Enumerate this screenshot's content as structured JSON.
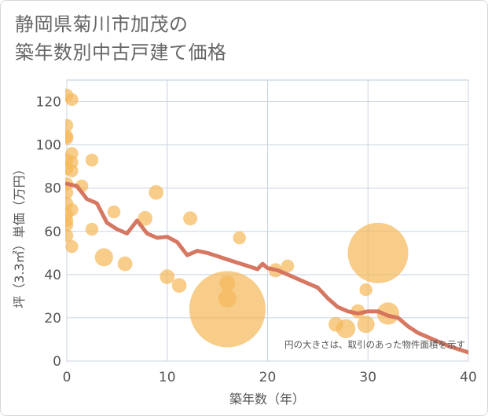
{
  "page": {
    "title_line1": "静岡県菊川市加茂の",
    "title_line2": "築年数別中古戸建て価格"
  },
  "chart_data": {
    "type": "scatter",
    "title": "静岡県菊川市加茂の築年数別中古戸建て価格",
    "xlabel": "築年数（年）",
    "ylabel": "坪（3.3㎡）単価（万円）",
    "xlim": [
      0,
      40
    ],
    "ylim": [
      0,
      130
    ],
    "x_ticks": [
      "0",
      "10",
      "20",
      "30",
      "40"
    ],
    "y_ticks": [
      "0",
      "20",
      "40",
      "60",
      "80",
      "100",
      "120"
    ],
    "grid": true,
    "annotation": "円の大きさは、取引のあった物件面積を示す",
    "colors": {
      "bubble": "#f5b85c",
      "trend": "#d4705a",
      "grid": "#c8d4e0",
      "frame": "#b8c8d8"
    },
    "series": [
      {
        "kind": "bubble",
        "points": [
          {
            "x": 0,
            "y": 123,
            "size": 1
          },
          {
            "x": 0,
            "y": 109,
            "size": 1
          },
          {
            "x": 0,
            "y": 104,
            "size": 1
          },
          {
            "x": 0,
            "y": 103,
            "size": 1
          },
          {
            "x": 0,
            "y": 93,
            "size": 1
          },
          {
            "x": 0,
            "y": 89,
            "size": 1
          },
          {
            "x": 0,
            "y": 82,
            "size": 1
          },
          {
            "x": 0,
            "y": 78,
            "size": 1
          },
          {
            "x": 0,
            "y": 73,
            "size": 1
          },
          {
            "x": 0,
            "y": 68,
            "size": 1
          },
          {
            "x": 0,
            "y": 65,
            "size": 1
          },
          {
            "x": 0,
            "y": 63,
            "size": 1
          },
          {
            "x": 0,
            "y": 58,
            "size": 1
          },
          {
            "x": 0.5,
            "y": 121,
            "size": 1
          },
          {
            "x": 0.5,
            "y": 96,
            "size": 1
          },
          {
            "x": 0.5,
            "y": 92,
            "size": 1
          },
          {
            "x": 0.5,
            "y": 88,
            "size": 1
          },
          {
            "x": 0.5,
            "y": 70,
            "size": 1
          },
          {
            "x": 0.5,
            "y": 53,
            "size": 1
          },
          {
            "x": 1.5,
            "y": 81,
            "size": 1
          },
          {
            "x": 2.5,
            "y": 93,
            "size": 1
          },
          {
            "x": 2.5,
            "y": 61,
            "size": 1
          },
          {
            "x": 3.7,
            "y": 48,
            "size": 2
          },
          {
            "x": 4.7,
            "y": 69,
            "size": 1
          },
          {
            "x": 5.8,
            "y": 45,
            "size": 1.3
          },
          {
            "x": 7.8,
            "y": 66,
            "size": 1.3
          },
          {
            "x": 8.9,
            "y": 78,
            "size": 1.3
          },
          {
            "x": 10,
            "y": 39,
            "size": 1.3
          },
          {
            "x": 11.2,
            "y": 35,
            "size": 1.3
          },
          {
            "x": 12.3,
            "y": 66,
            "size": 1.2
          },
          {
            "x": 16,
            "y": 24,
            "size": 35
          },
          {
            "x": 16,
            "y": 36,
            "size": 1.5
          },
          {
            "x": 16,
            "y": 29,
            "size": 2
          },
          {
            "x": 17.2,
            "y": 57,
            "size": 1
          },
          {
            "x": 20.8,
            "y": 42,
            "size": 1.2
          },
          {
            "x": 22,
            "y": 44,
            "size": 1
          },
          {
            "x": 26.8,
            "y": 17,
            "size": 1.3
          },
          {
            "x": 27.8,
            "y": 15,
            "size": 2.2
          },
          {
            "x": 29,
            "y": 23,
            "size": 1.2
          },
          {
            "x": 29.8,
            "y": 33,
            "size": 1
          },
          {
            "x": 29.8,
            "y": 17,
            "size": 1.8
          },
          {
            "x": 31,
            "y": 50,
            "size": 22
          },
          {
            "x": 32,
            "y": 22,
            "size": 3
          }
        ]
      },
      {
        "kind": "line",
        "points": [
          {
            "x": 0,
            "y": 82
          },
          {
            "x": 1,
            "y": 81
          },
          {
            "x": 2,
            "y": 75
          },
          {
            "x": 3,
            "y": 73
          },
          {
            "x": 4,
            "y": 64
          },
          {
            "x": 5,
            "y": 61
          },
          {
            "x": 6,
            "y": 59
          },
          {
            "x": 7,
            "y": 65
          },
          {
            "x": 8,
            "y": 59
          },
          {
            "x": 9,
            "y": 57
          },
          {
            "x": 10,
            "y": 57.5
          },
          {
            "x": 11,
            "y": 55
          },
          {
            "x": 12,
            "y": 49
          },
          {
            "x": 13,
            "y": 51
          },
          {
            "x": 14,
            "y": 50
          },
          {
            "x": 15,
            "y": 48.5
          },
          {
            "x": 16,
            "y": 47
          },
          {
            "x": 17,
            "y": 45.5
          },
          {
            "x": 18,
            "y": 44
          },
          {
            "x": 19,
            "y": 42.5
          },
          {
            "x": 19.5,
            "y": 45
          },
          {
            "x": 20,
            "y": 43
          },
          {
            "x": 21,
            "y": 42
          },
          {
            "x": 22,
            "y": 40
          },
          {
            "x": 23,
            "y": 38
          },
          {
            "x": 24,
            "y": 36
          },
          {
            "x": 25,
            "y": 34
          },
          {
            "x": 26,
            "y": 29
          },
          {
            "x": 27,
            "y": 25
          },
          {
            "x": 28,
            "y": 23
          },
          {
            "x": 29,
            "y": 22
          },
          {
            "x": 30,
            "y": 23
          },
          {
            "x": 31,
            "y": 23
          },
          {
            "x": 32,
            "y": 21
          },
          {
            "x": 33,
            "y": 20
          },
          {
            "x": 34,
            "y": 16
          },
          {
            "x": 35,
            "y": 13
          },
          {
            "x": 36,
            "y": 11
          },
          {
            "x": 37,
            "y": 9
          },
          {
            "x": 38,
            "y": 7
          },
          {
            "x": 39,
            "y": 5.5
          },
          {
            "x": 40,
            "y": 4
          }
        ]
      }
    ]
  }
}
